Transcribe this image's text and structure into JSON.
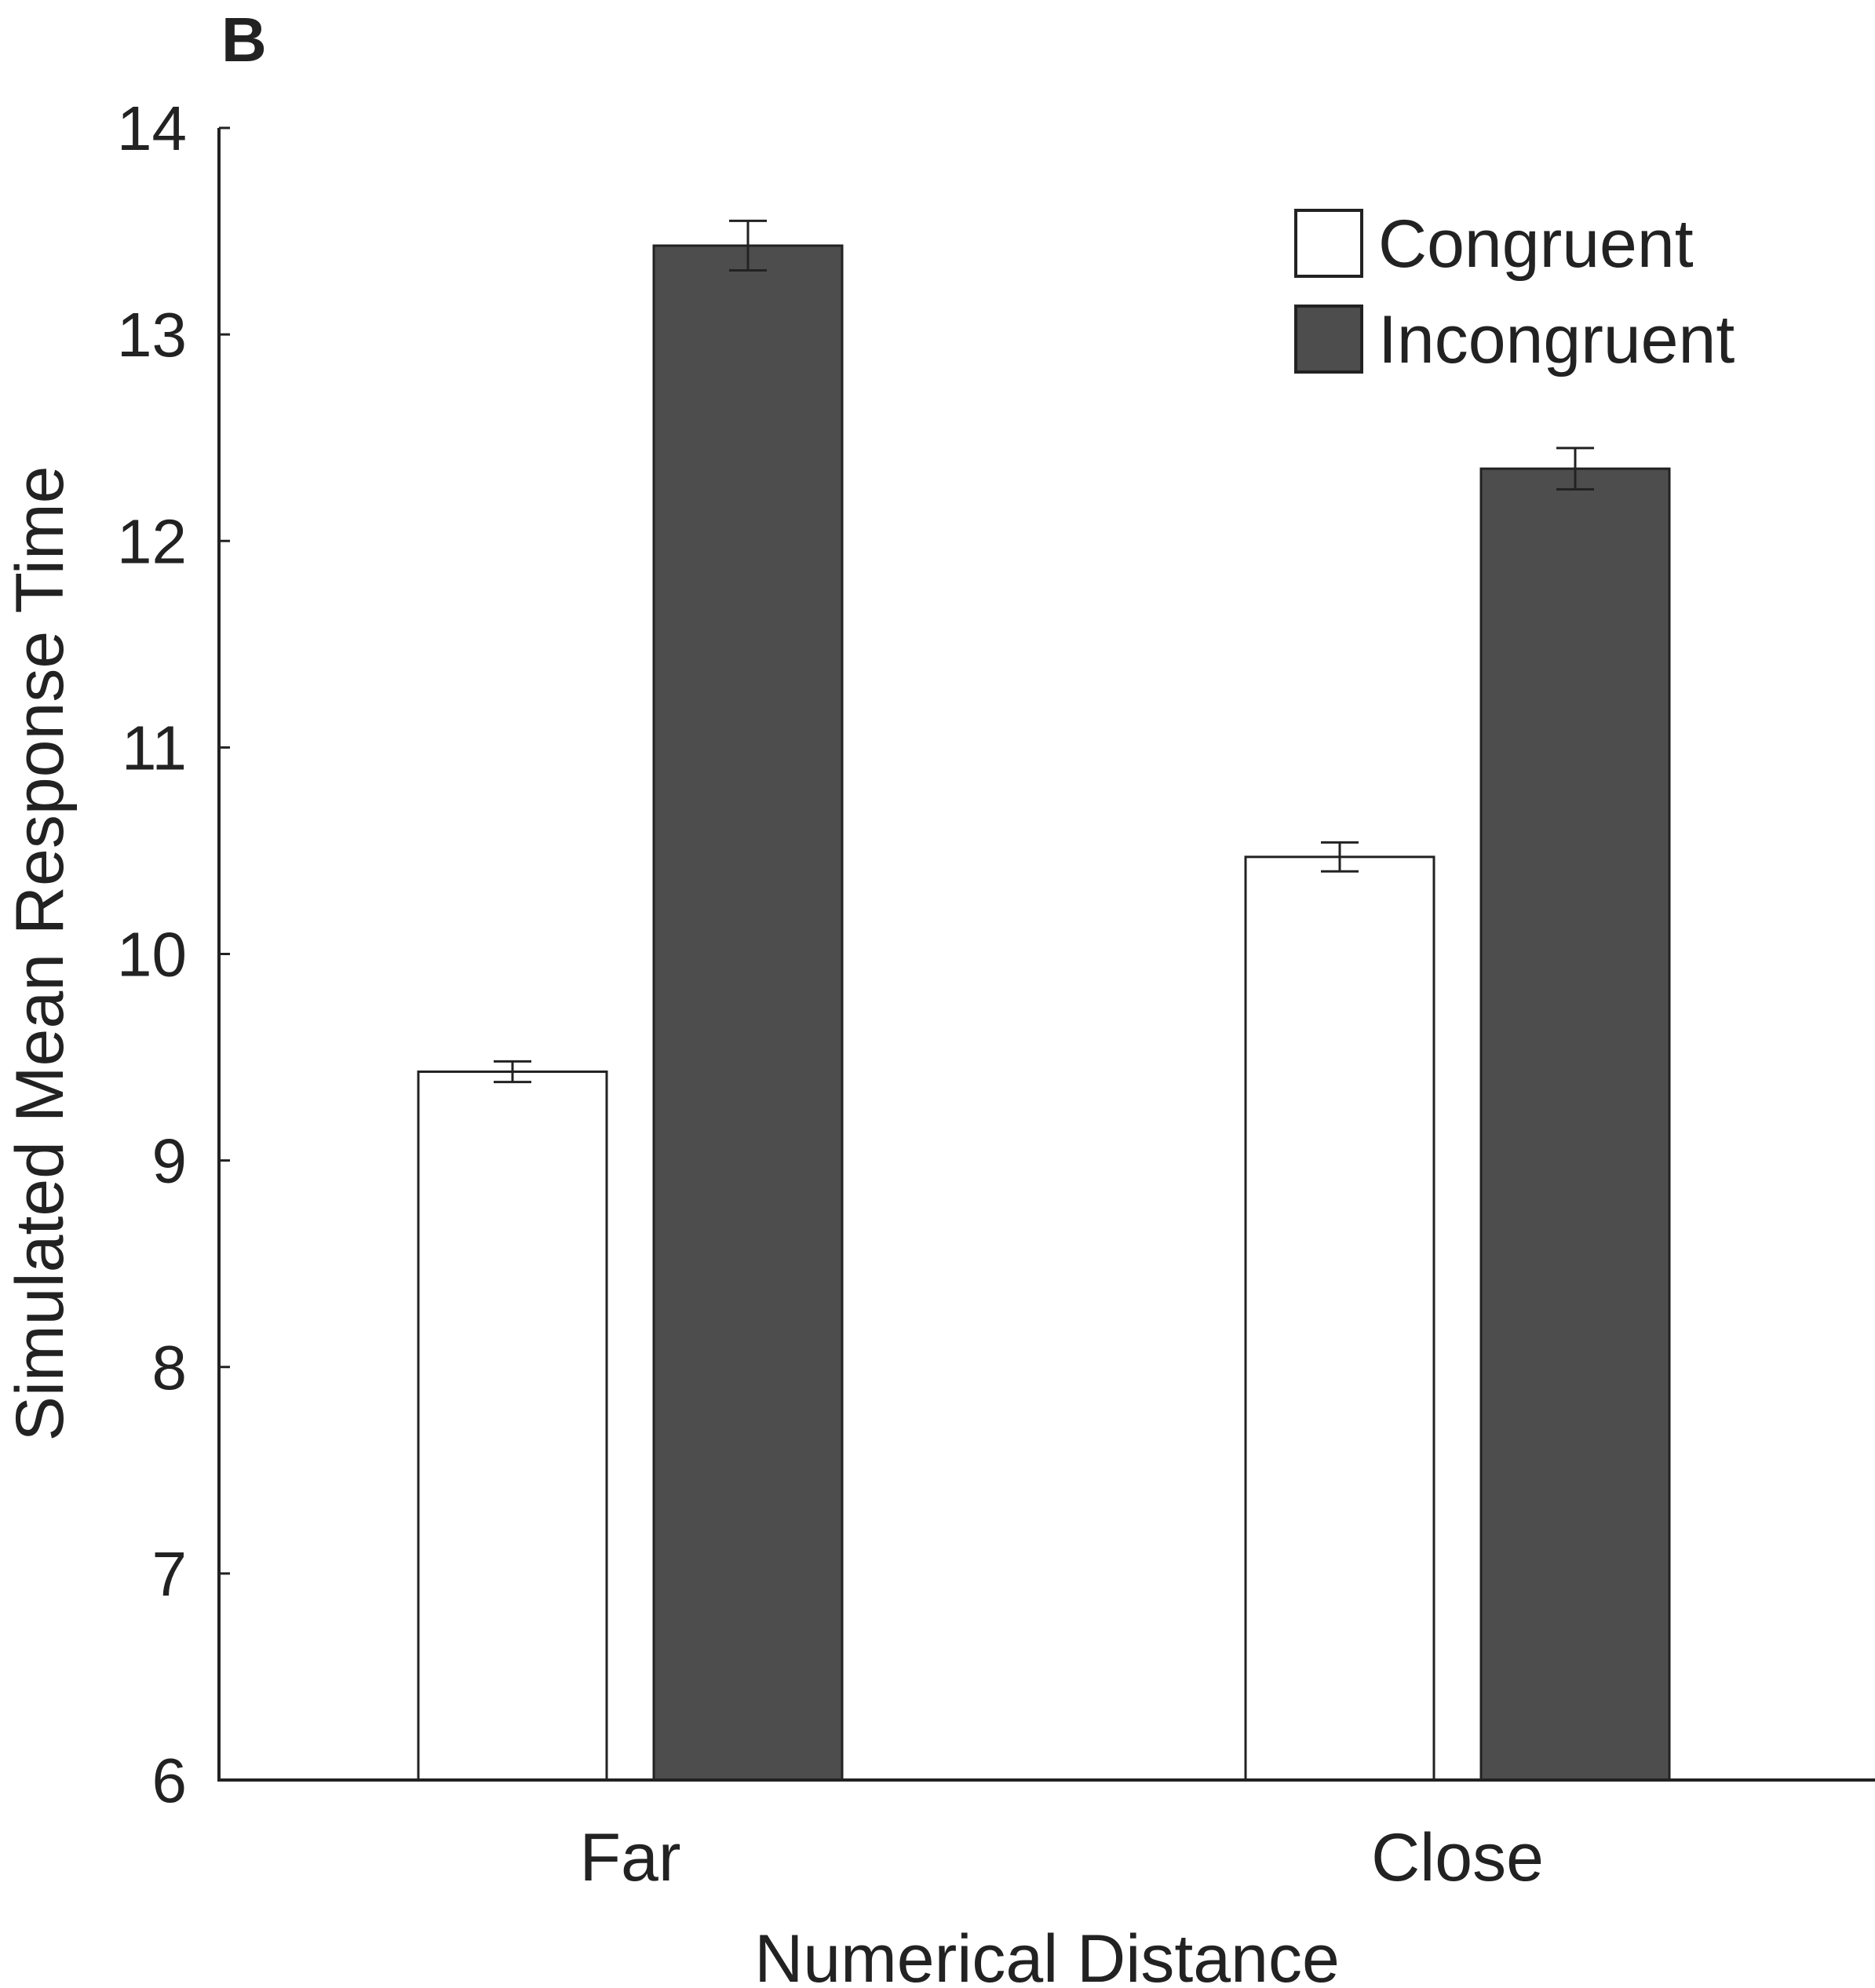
{
  "panel_label": "B",
  "chart_data": {
    "type": "bar",
    "categories": [
      "Far",
      "Close"
    ],
    "series": [
      {
        "name": "Congruent",
        "color": "#ffffff",
        "values": [
          9.43,
          10.47
        ],
        "errors": [
          0.05,
          0.07
        ]
      },
      {
        "name": "Incongruent",
        "color": "#4d4d4d",
        "values": [
          13.43,
          12.35
        ],
        "errors": [
          0.12,
          0.1
        ]
      }
    ],
    "xlabel": "Numerical Distance",
    "ylabel": "Simulated Mean Response Time",
    "ylim": [
      6,
      14
    ],
    "yticks": [
      "6",
      "7",
      "8",
      "9",
      "10",
      "11",
      "12",
      "13",
      "14"
    ],
    "grid": false,
    "legend": "top-right"
  }
}
